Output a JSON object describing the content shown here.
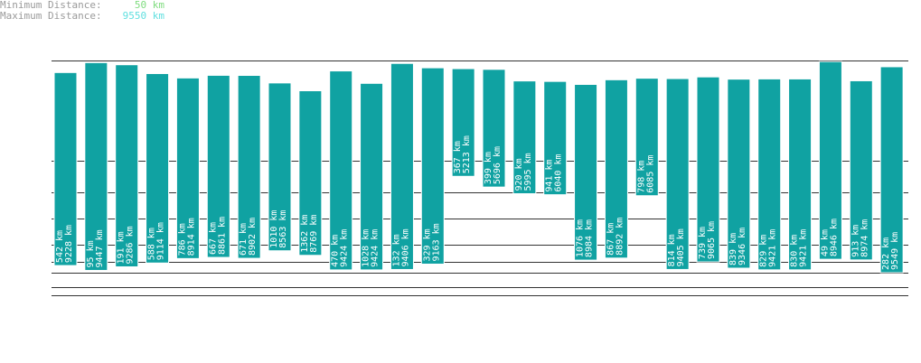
{
  "legend": {
    "min_label": "Minimum Distance:",
    "min_value": "50 km",
    "min_color": "#7fdc7f",
    "max_label": "Maximum Distance:",
    "max_value": "9550 km",
    "max_color": "#62e0e0"
  },
  "colors": {
    "bar": "#10a2a2",
    "bar_stroke": "#ffffff",
    "line": "#333333"
  },
  "chart_data": {
    "type": "bar",
    "units": "km",
    "ylim": [
      0,
      9550
    ],
    "grid": true,
    "bars": [
      {
        "top": 542,
        "bottom": 9228
      },
      {
        "top": 95,
        "bottom": 9447
      },
      {
        "top": 191,
        "bottom": 9286
      },
      {
        "top": 588,
        "bottom": 9114
      },
      {
        "top": 786,
        "bottom": 8914
      },
      {
        "top": 667,
        "bottom": 8861
      },
      {
        "top": 671,
        "bottom": 8902
      },
      {
        "top": 1010,
        "bottom": 8563
      },
      {
        "top": 1362,
        "bottom": 8769
      },
      {
        "top": 470,
        "bottom": 9424
      },
      {
        "top": 1028,
        "bottom": 9424
      },
      {
        "top": 132,
        "bottom": 9406
      },
      {
        "top": 329,
        "bottom": 9163
      },
      {
        "top": 367,
        "bottom": 5213
      },
      {
        "top": 399,
        "bottom": 5696
      },
      {
        "top": 920,
        "bottom": 5995
      },
      {
        "top": 941,
        "bottom": 6040
      },
      {
        "top": 1076,
        "bottom": 8984
      },
      {
        "top": 867,
        "bottom": 8892
      },
      {
        "top": 798,
        "bottom": 6085
      },
      {
        "top": 814,
        "bottom": 9405
      },
      {
        "top": 739,
        "bottom": 9065
      },
      {
        "top": 839,
        "bottom": 9346
      },
      {
        "top": 829,
        "bottom": 9421
      },
      {
        "top": 830,
        "bottom": 9421
      },
      {
        "top": 49,
        "bottom": 8946
      },
      {
        "top": 913,
        "bottom": 8974
      },
      {
        "top": 282,
        "bottom": 9549
      }
    ]
  }
}
